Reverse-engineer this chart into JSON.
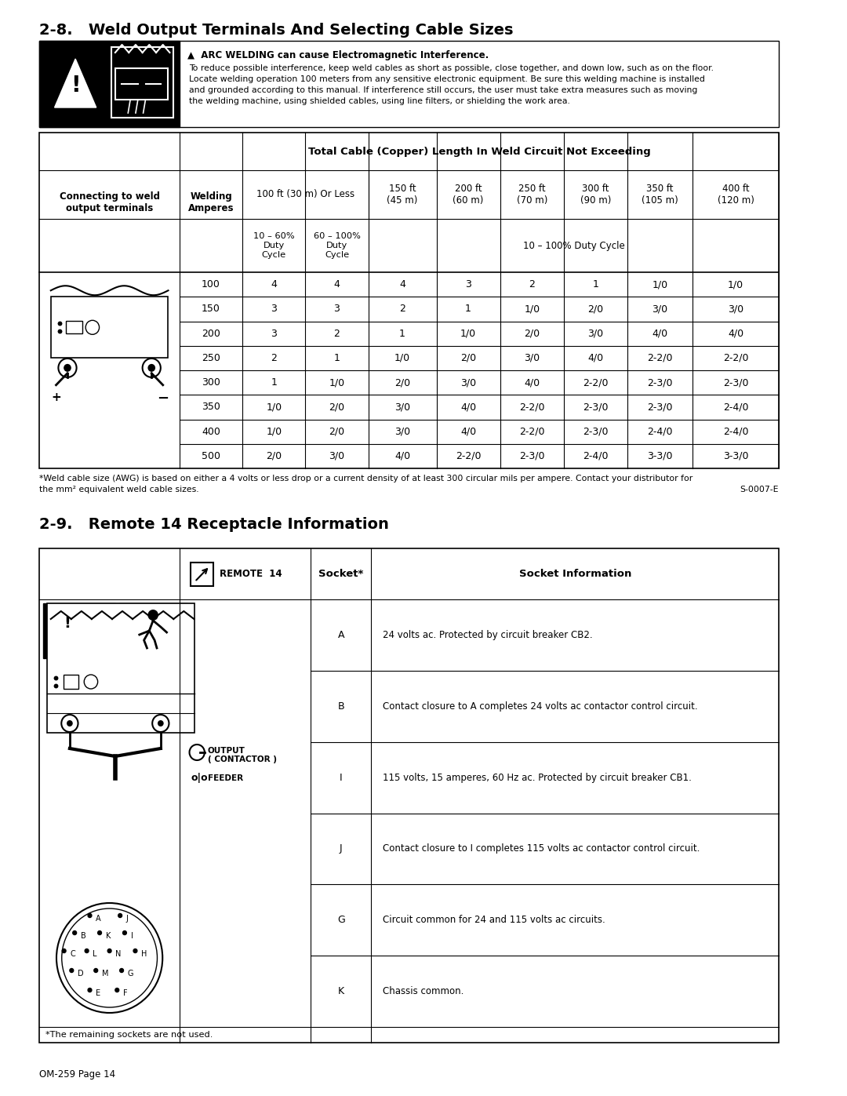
{
  "page_title_1": "2-8.   Weld Output Terminals And Selecting Cable Sizes",
  "page_title_2": "2-9.   Remote 14 Receptacle Information",
  "warning_text_bold": "ARC WELDING can cause Electromagnetic Interference.",
  "warning_text_line1": "To reduce possible interference, keep weld cables as short as possible, close together, and down low, such as on the floor.",
  "warning_text_line2": "Locate welding operation 100 meters from any sensitive electronic equipment. Be sure this welding machine is installed",
  "warning_text_line3": "and grounded according to this manual. If interference still occurs, the user must take extra measures such as moving",
  "warning_text_line4": "the welding machine, using shielded cables, using line filters, or shielding the work area.",
  "table1_header1": "Total Cable (Copper) Length In Weld Circuit Not Exceeding",
  "table1_data": [
    [
      "100",
      "4",
      "4",
      "4",
      "3",
      "2",
      "1",
      "1/0",
      "1/0"
    ],
    [
      "150",
      "3",
      "3",
      "2",
      "1",
      "1/0",
      "2/0",
      "3/0",
      "3/0"
    ],
    [
      "200",
      "3",
      "2",
      "1",
      "1/0",
      "2/0",
      "3/0",
      "4/0",
      "4/0"
    ],
    [
      "250",
      "2",
      "1",
      "1/0",
      "2/0",
      "3/0",
      "4/0",
      "2-2/0",
      "2-2/0"
    ],
    [
      "300",
      "1",
      "1/0",
      "2/0",
      "3/0",
      "4/0",
      "2-2/0",
      "2-3/0",
      "2-3/0"
    ],
    [
      "350",
      "1/0",
      "2/0",
      "3/0",
      "4/0",
      "2-2/0",
      "2-3/0",
      "2-3/0",
      "2-4/0"
    ],
    [
      "400",
      "1/0",
      "2/0",
      "3/0",
      "4/0",
      "2-2/0",
      "2-3/0",
      "2-4/0",
      "2-4/0"
    ],
    [
      "500",
      "2/0",
      "3/0",
      "4/0",
      "2-2/0",
      "2-3/0",
      "2-4/0",
      "3-3/0",
      "3-3/0"
    ]
  ],
  "footnote_line1": "*Weld cable size (AWG) is based on either a 4 volts or less drop or a current density of at least 300 circular mils per ampere. Contact your distributor for",
  "footnote_line2": "the mm² equivalent weld cable sizes.",
  "footnote_code": "S-0007-E",
  "table2_data": [
    [
      "A",
      "24 volts ac. Protected by circuit breaker CB2."
    ],
    [
      "B",
      "Contact closure to A completes 24 volts ac contactor control circuit."
    ],
    [
      "I",
      "115 volts, 15 amperes, 60 Hz ac. Protected by circuit breaker CB1."
    ],
    [
      "J",
      "Contact closure to I completes 115 volts ac contactor control circuit."
    ],
    [
      "G",
      "Circuit common for 24 and 115 volts ac circuits."
    ],
    [
      "K",
      "Chassis common."
    ]
  ],
  "table2_footnote": "*The remaining sockets are not used.",
  "page_footer": "OM-259 Page 14"
}
